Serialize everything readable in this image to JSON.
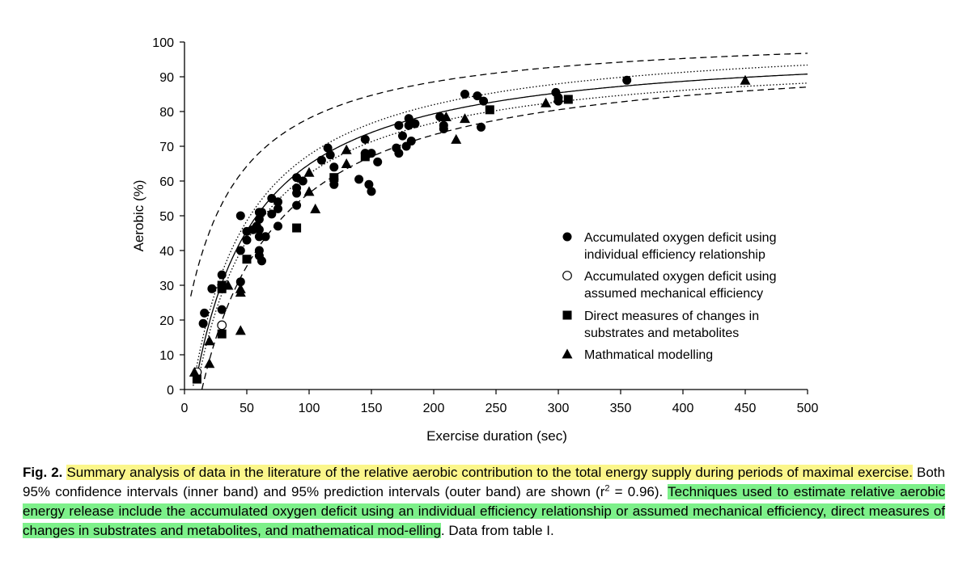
{
  "chart_data": {
    "type": "scatter",
    "xlabel": "Exercise duration (sec)",
    "ylabel": "Aerobic (%)",
    "xlim": [
      0,
      500
    ],
    "ylim": [
      0,
      100
    ],
    "xticks": [
      "0",
      "50",
      "100",
      "150",
      "200",
      "250",
      "300",
      "350",
      "400",
      "450",
      "500"
    ],
    "yticks": [
      "0",
      "10",
      "20",
      "30",
      "40",
      "50",
      "60",
      "70",
      "80",
      "90",
      "100"
    ],
    "grid": false,
    "legend_position": "right-center",
    "series": [
      {
        "name": "Accumulated oxygen deficit using individual efficiency relationship",
        "marker": "filled-circle",
        "points": [
          [
            15,
            19
          ],
          [
            16,
            22
          ],
          [
            22,
            29
          ],
          [
            30,
            33
          ],
          [
            30,
            23
          ],
          [
            45,
            50
          ],
          [
            45,
            40
          ],
          [
            45,
            31
          ],
          [
            50,
            45.5
          ],
          [
            50,
            43
          ],
          [
            55,
            46
          ],
          [
            58,
            47
          ],
          [
            60,
            51
          ],
          [
            60,
            49
          ],
          [
            60,
            46
          ],
          [
            60,
            44
          ],
          [
            60,
            40
          ],
          [
            60,
            38.5
          ],
          [
            62,
            37
          ],
          [
            62,
            51
          ],
          [
            65,
            44
          ],
          [
            70,
            50.5
          ],
          [
            70,
            55
          ],
          [
            75,
            52
          ],
          [
            75,
            54
          ],
          [
            75,
            47
          ],
          [
            90,
            61
          ],
          [
            90,
            58
          ],
          [
            90,
            56.5
          ],
          [
            90,
            53
          ],
          [
            95,
            60
          ],
          [
            110,
            66
          ],
          [
            115,
            69.5
          ],
          [
            117,
            67.5
          ],
          [
            120,
            64
          ],
          [
            120,
            60.5
          ],
          [
            120,
            59
          ],
          [
            140,
            60.5
          ],
          [
            145,
            72
          ],
          [
            145,
            68
          ],
          [
            148,
            59
          ],
          [
            150,
            68
          ],
          [
            150,
            57
          ],
          [
            155,
            65.5
          ],
          [
            170,
            69.5
          ],
          [
            172,
            68
          ],
          [
            172,
            76
          ],
          [
            175,
            73
          ],
          [
            178,
            70
          ],
          [
            180,
            78
          ],
          [
            180,
            76
          ],
          [
            182,
            71.5
          ],
          [
            185,
            76.5
          ],
          [
            205,
            78.5
          ],
          [
            208,
            75
          ],
          [
            208,
            76
          ],
          [
            225,
            85
          ],
          [
            235,
            84.5
          ],
          [
            238,
            75.5
          ],
          [
            240,
            83
          ],
          [
            298,
            85.5
          ],
          [
            300,
            84
          ],
          [
            300,
            83
          ],
          [
            355,
            89
          ]
        ]
      },
      {
        "name": "Accumulated oxygen deficit using assumed mechanical efficiency",
        "marker": "open-circle",
        "points": [
          [
            30,
            18.5
          ],
          [
            10,
            5
          ]
        ]
      },
      {
        "name": "Direct measures of changes in substrates and metabolites",
        "marker": "filled-square",
        "points": [
          [
            10,
            3
          ],
          [
            30,
            30
          ],
          [
            30,
            29
          ],
          [
            30,
            16
          ],
          [
            50,
            37.5
          ],
          [
            90,
            46.5
          ],
          [
            120,
            61
          ],
          [
            145,
            67
          ],
          [
            245,
            80.5
          ],
          [
            308,
            83.5
          ]
        ]
      },
      {
        "name": "Mathmatical modelling",
        "marker": "filled-triangle",
        "points": [
          [
            8,
            5
          ],
          [
            20,
            14
          ],
          [
            20,
            7.5
          ],
          [
            35,
            30
          ],
          [
            45,
            17
          ],
          [
            45,
            28
          ],
          [
            45,
            29
          ],
          [
            100,
            57
          ],
          [
            100,
            62.5
          ],
          [
            105,
            52
          ],
          [
            130,
            69
          ],
          [
            130,
            65
          ],
          [
            210,
            78.5
          ],
          [
            218,
            72
          ],
          [
            225,
            78
          ],
          [
            290,
            82.5
          ],
          [
            300,
            84
          ],
          [
            450,
            89
          ]
        ]
      }
    ],
    "fit_curve": {
      "name": "fit",
      "style": "solid",
      "y_max": 100
    },
    "confidence_band": {
      "style": "dotted",
      "label": "95% confidence intervals (inner band)"
    },
    "prediction_band": {
      "style": "dashed",
      "label": "95% prediction intervals (outer band)"
    }
  },
  "caption": {
    "fig_label": "Fig. 2.",
    "part1_highlight": "Summary analysis of data in the literature of the relative aerobic contribution to the total energy supply during periods of maximal exercise.",
    "part2_plain": " Both 95% confidence intervals (inner band) and 95% prediction intervals (outer band) are shown (r",
    "r_sup": "2",
    "part3_plain": " = 0.96). ",
    "part4_highlight": "Techniques used to estimate relative aerobic energy release include the accumulated oxygen deficit using an individual efficiency relationship or assumed mechanical efficiency, direct measures of changes in substrates and metabolites, and mathematical mod-elling",
    "part5_plain": ". Data from table I."
  },
  "legend": {
    "items": [
      {
        "marker": "filled-circle",
        "lines": [
          "Accumulated oxygen deficit using",
          "individual efficiency relationship"
        ]
      },
      {
        "marker": "open-circle",
        "lines": [
          "Accumulated oxygen deficit using",
          "assumed mechanical efficiency"
        ]
      },
      {
        "marker": "filled-square",
        "lines": [
          "Direct measures of changes in",
          "substrates and metabolites"
        ]
      },
      {
        "marker": "filled-triangle",
        "lines": [
          "Mathmatical modelling"
        ]
      }
    ]
  },
  "colors": {
    "highlight_yellow": "#fbf68a",
    "highlight_green": "#7df08a",
    "ink": "#000000"
  }
}
